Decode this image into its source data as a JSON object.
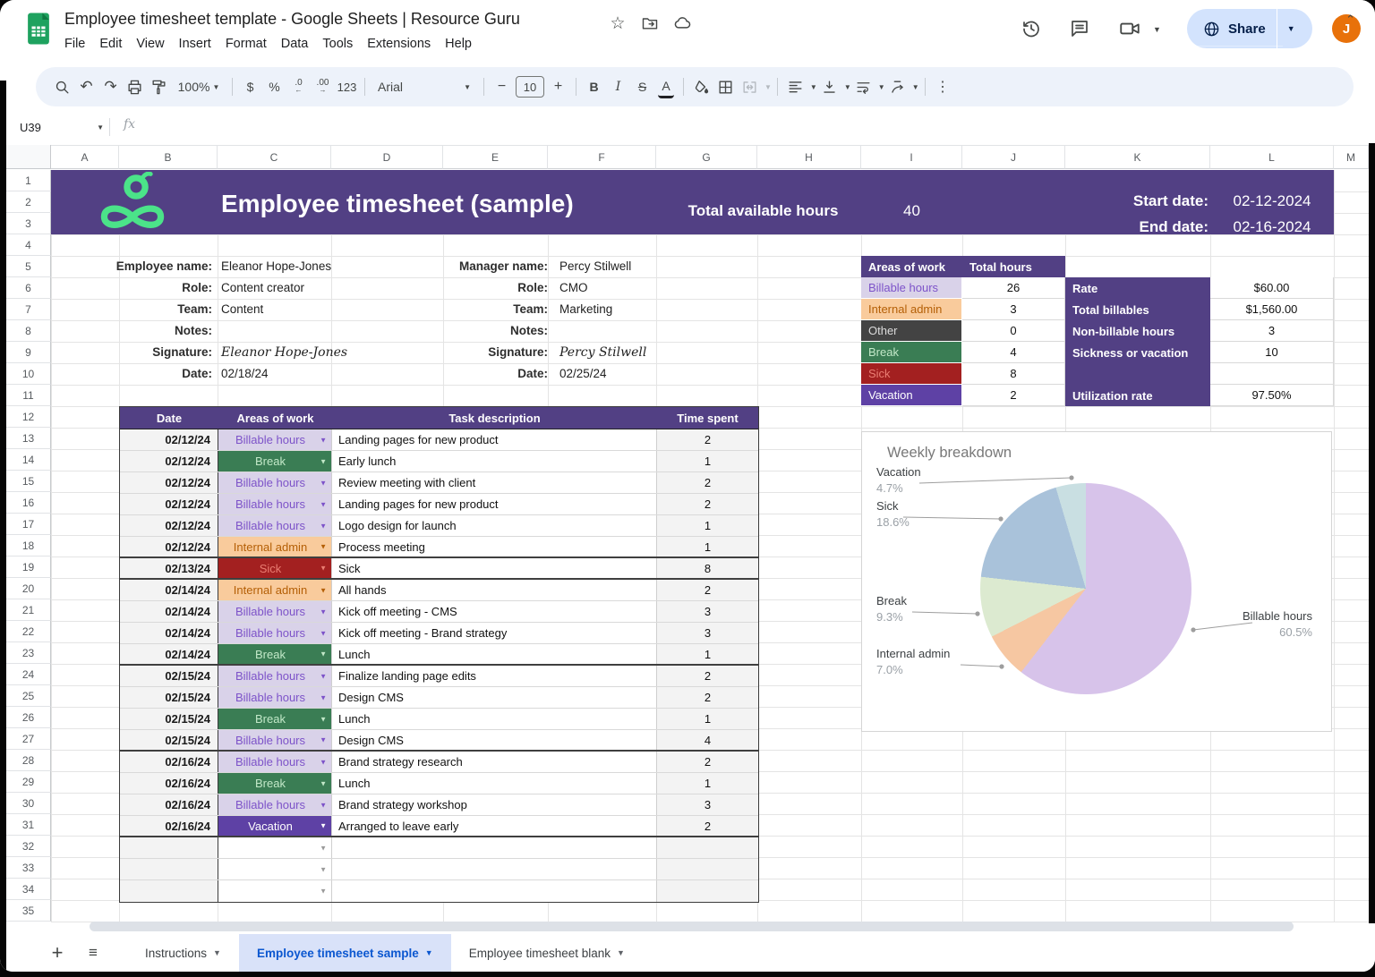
{
  "titlebar": {
    "doc_title": "Employee timesheet template - Google Sheets | Resource Guru",
    "menus": [
      "File",
      "Edit",
      "View",
      "Insert",
      "Format",
      "Data",
      "Tools",
      "Extensions",
      "Help"
    ],
    "share_label": "Share",
    "avatar_initial": "J"
  },
  "toolbar": {
    "zoom_value": "100%",
    "currency_label": "$",
    "percent_label": "%",
    "decimal_decrease_label": ".0",
    "decimal_increase_label": ".00",
    "number_format_label": "123",
    "font_family_value": "Arial",
    "font_size_value": "10",
    "bold_label": "B",
    "italic_label": "I",
    "strikethrough_label": "S",
    "text_color_label": "A"
  },
  "formula_bar": {
    "cell_ref": "U39",
    "fx_label": "fx"
  },
  "grid": {
    "column_letters": [
      "A",
      "B",
      "C",
      "D",
      "E",
      "F",
      "G",
      "H",
      "I",
      "J",
      "K",
      "L",
      "M"
    ],
    "row_count": 35
  },
  "banner": {
    "title": "Employee timesheet (sample)",
    "total_available_hours_label": "Total available hours",
    "total_available_hours_value": "40",
    "start_date_label": "Start date:",
    "start_date_value": "02-12-2024",
    "end_date_label": "End date:",
    "end_date_value": "02-16-2024"
  },
  "info": {
    "employee": [
      {
        "label": "Employee name:",
        "value": "Eleanor Hope-Jones",
        "script": false
      },
      {
        "label": "Role:",
        "value": "Content creator",
        "script": false
      },
      {
        "label": "Team:",
        "value": "Content",
        "script": false
      },
      {
        "label": "Notes:",
        "value": "",
        "script": false
      },
      {
        "label": "Signature:",
        "value": "Eleanor Hope-Jones",
        "script": true
      },
      {
        "label": "Date:",
        "value": "02/18/24",
        "script": false
      }
    ],
    "manager": [
      {
        "label": "Manager name:",
        "value": "Percy Stilwell",
        "script": false
      },
      {
        "label": "Role:",
        "value": "CMO",
        "script": false
      },
      {
        "label": "Team:",
        "value": "Marketing",
        "script": false
      },
      {
        "label": "Notes:",
        "value": "",
        "script": false
      },
      {
        "label": "Signature:",
        "value": "Percy Stilwell",
        "script": true
      },
      {
        "label": "Date:",
        "value": "02/25/24",
        "script": false
      }
    ]
  },
  "summary": {
    "headers": [
      "Areas of work",
      "Total hours"
    ],
    "rows": [
      {
        "area": "Billable hours",
        "hours": "26",
        "type": "billable"
      },
      {
        "area": "Internal admin",
        "hours": "3",
        "type": "internal"
      },
      {
        "area": "Other",
        "hours": "0",
        "type": "other"
      },
      {
        "area": "Break",
        "hours": "4",
        "type": "break"
      },
      {
        "area": "Sick",
        "hours": "8",
        "type": "sick"
      },
      {
        "area": "Vacation",
        "hours": "2",
        "type": "vacation"
      }
    ],
    "stats": [
      {
        "label": "Rate",
        "value": "$60.00"
      },
      {
        "label": "Total billables",
        "value": "$1,560.00"
      },
      {
        "label": "Non-billable hours",
        "value": "3"
      },
      {
        "label": "Sickness or vacation",
        "value": "10"
      },
      {
        "label": "",
        "value": ""
      },
      {
        "label": "Utilization rate",
        "value": "97.50%"
      }
    ]
  },
  "timesheet": {
    "headers": [
      "Date",
      "Areas of work",
      "Task description",
      "Time spent"
    ],
    "rows": [
      {
        "date": "02/12/24",
        "area": "Billable hours",
        "type": "billable",
        "task": "Landing pages for new product",
        "time": "2",
        "group_end": false
      },
      {
        "date": "02/12/24",
        "area": "Break",
        "type": "break",
        "task": "Early lunch",
        "time": "1",
        "group_end": false
      },
      {
        "date": "02/12/24",
        "area": "Billable hours",
        "type": "billable",
        "task": "Review meeting with client",
        "time": "2",
        "group_end": false
      },
      {
        "date": "02/12/24",
        "area": "Billable hours",
        "type": "billable",
        "task": "Landing pages for new product",
        "time": "2",
        "group_end": false
      },
      {
        "date": "02/12/24",
        "area": "Billable hours",
        "type": "billable",
        "task": "Logo design for launch",
        "time": "1",
        "group_end": false
      },
      {
        "date": "02/12/24",
        "area": "Internal admin",
        "type": "internal",
        "task": "Process meeting",
        "time": "1",
        "group_end": true
      },
      {
        "date": "02/13/24",
        "area": "Sick",
        "type": "sick",
        "task": "Sick",
        "time": "8",
        "group_end": true
      },
      {
        "date": "02/14/24",
        "area": "Internal admin",
        "type": "internal",
        "task": "All hands",
        "time": "2",
        "group_end": false
      },
      {
        "date": "02/14/24",
        "area": "Billable hours",
        "type": "billable",
        "task": "Kick off meeting - CMS",
        "time": "3",
        "group_end": false
      },
      {
        "date": "02/14/24",
        "area": "Billable hours",
        "type": "billable",
        "task": "Kick off meeting - Brand strategy",
        "time": "3",
        "group_end": false
      },
      {
        "date": "02/14/24",
        "area": "Break",
        "type": "break",
        "task": "Lunch",
        "time": "1",
        "group_end": true
      },
      {
        "date": "02/15/24",
        "area": "Billable hours",
        "type": "billable",
        "task": "Finalize landing page edits",
        "time": "2",
        "group_end": false
      },
      {
        "date": "02/15/24",
        "area": "Billable hours",
        "type": "billable",
        "task": "Design CMS",
        "time": "2",
        "group_end": false
      },
      {
        "date": "02/15/24",
        "area": "Break",
        "type": "break",
        "task": "Lunch",
        "time": "1",
        "group_end": false
      },
      {
        "date": "02/15/24",
        "area": "Billable hours",
        "type": "billable",
        "task": "Design CMS",
        "time": "4",
        "group_end": true
      },
      {
        "date": "02/16/24",
        "area": "Billable hours",
        "type": "billable",
        "task": "Brand strategy research",
        "time": "2",
        "group_end": false
      },
      {
        "date": "02/16/24",
        "area": "Break",
        "type": "break",
        "task": "Lunch",
        "time": "1",
        "group_end": false
      },
      {
        "date": "02/16/24",
        "area": "Billable hours",
        "type": "billable",
        "task": "Brand strategy workshop",
        "time": "3",
        "group_end": false
      },
      {
        "date": "02/16/24",
        "area": "Vacation",
        "type": "vacation",
        "task": "Arranged to leave early",
        "time": "2",
        "group_end": true
      }
    ],
    "empty_row_count": 3
  },
  "chart_data": {
    "type": "pie",
    "title": "Weekly breakdown",
    "labels": [
      "Billable hours",
      "Internal admin",
      "Break",
      "Sick",
      "Vacation"
    ],
    "values": [
      60.5,
      7.0,
      9.3,
      18.6,
      4.7
    ],
    "percent_labels": [
      "60.5%",
      "7.0%",
      "9.3%",
      "18.6%",
      "4.7%"
    ],
    "hours": [
      26,
      3,
      4,
      8,
      2
    ],
    "slice_colors": [
      "#d7c3ea",
      "#f6c7a2",
      "#dcead0",
      "#a9c2da",
      "#c9dfe2"
    ],
    "legend_position": "outside-callouts"
  },
  "sheet_tabs": {
    "labels": [
      "Instructions",
      "Employee timesheet sample",
      "Employee timesheet blank"
    ],
    "active_index": 1
  },
  "colors": {
    "banner_purple": "#524084",
    "share_bg": "#d3e3fd",
    "avatar_bg": "#e8710a",
    "active_tab_text": "#0b57d0",
    "chips": {
      "billable": {
        "bg": "#d9d2e9",
        "fg": "#7d53c9"
      },
      "internal": {
        "bg": "#f9cb9c",
        "fg": "#b45f06"
      },
      "other": {
        "bg": "#434343",
        "fg": "#dcdcdc"
      },
      "break": {
        "bg": "#3a7d54",
        "fg": "#c2e8c8"
      },
      "sick": {
        "bg": "#a32020",
        "fg": "#ea7d72"
      },
      "vacation": {
        "bg": "#5e41a5",
        "fg": "#ffffff"
      }
    }
  }
}
